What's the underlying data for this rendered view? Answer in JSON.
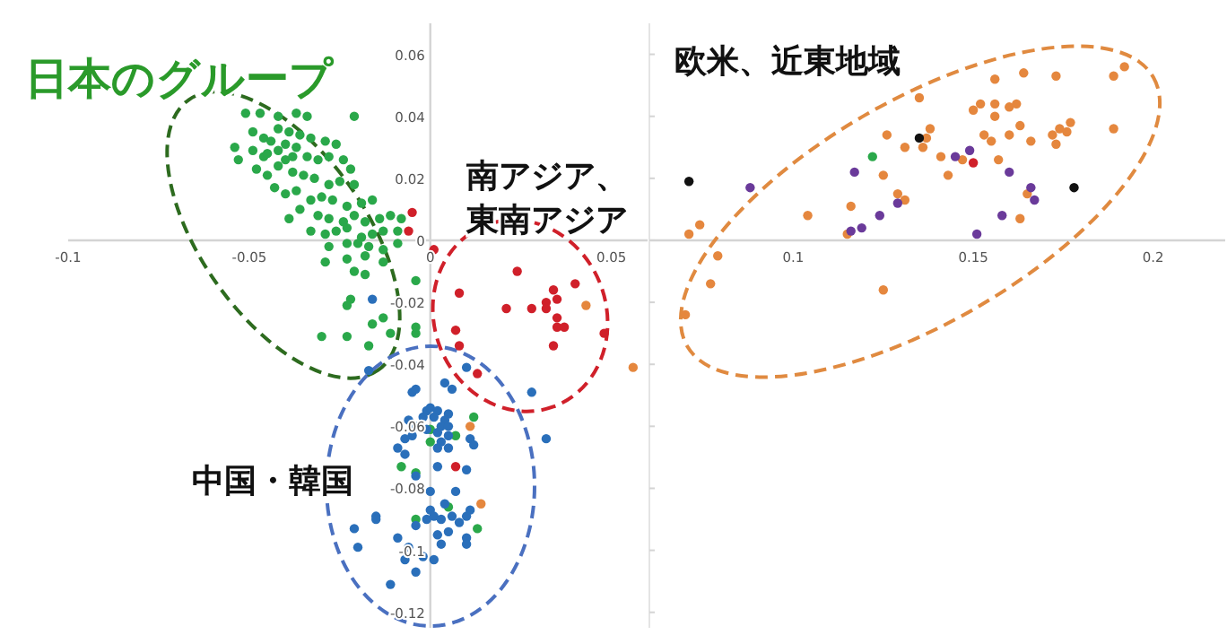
{
  "chart_data": [
    {
      "type": "scatter",
      "xlim": [
        -0.1,
        0.06
      ],
      "ylim": [
        -0.125,
        0.07
      ],
      "xticks": [
        -0.1,
        -0.05,
        0,
        0.05
      ],
      "yticks": [
        0.06,
        0.04,
        0.02,
        0,
        -0.02,
        -0.04,
        -0.06,
        -0.08,
        -0.1,
        -0.12
      ],
      "marker": "circle",
      "grid": false,
      "annotations": [
        "日本のグループ",
        "南アジア、東南アジア",
        "中国・韓国"
      ],
      "series": [
        {
          "color": "#2aa84a",
          "x": [
            -0.051,
            -0.047,
            -0.042,
            -0.037,
            -0.034,
            -0.021,
            -0.054,
            -0.049,
            -0.046,
            -0.042,
            -0.039,
            -0.036,
            -0.033,
            -0.029,
            -0.026,
            -0.053,
            -0.049,
            -0.046,
            -0.042,
            -0.04,
            -0.037,
            -0.034,
            -0.031,
            -0.028,
            -0.024,
            -0.022,
            -0.048,
            -0.045,
            -0.042,
            -0.038,
            -0.035,
            -0.032,
            -0.028,
            -0.025,
            -0.021,
            -0.043,
            -0.04,
            -0.037,
            -0.033,
            -0.03,
            -0.027,
            -0.023,
            -0.019,
            -0.016,
            -0.039,
            -0.036,
            -0.031,
            -0.028,
            -0.024,
            -0.021,
            -0.018,
            -0.014,
            -0.011,
            -0.008,
            -0.033,
            -0.029,
            -0.026,
            -0.023,
            -0.019,
            -0.016,
            -0.013,
            -0.009,
            -0.028,
            -0.023,
            -0.02,
            -0.017,
            -0.013,
            -0.009,
            -0.029,
            -0.023,
            -0.018,
            -0.013,
            -0.021,
            -0.018,
            -0.004,
            -0.022,
            -0.023,
            -0.013,
            -0.016,
            -0.004,
            -0.011,
            -0.023,
            -0.03,
            -0.017,
            -0.004,
            -0.044,
            -0.04,
            -0.045,
            -0.038,
            0.012,
            0.0,
            0.007,
            0.0,
            -0.008,
            -0.004,
            -0.004,
            0.005,
            0.013
          ],
          "values": [
            0.041,
            0.041,
            0.04,
            0.041,
            0.04,
            0.04,
            0.03,
            0.035,
            0.033,
            0.036,
            0.035,
            0.034,
            0.033,
            0.032,
            0.031,
            0.026,
            0.029,
            0.027,
            0.029,
            0.026,
            0.03,
            0.027,
            0.026,
            0.027,
            0.026,
            0.023,
            0.023,
            0.021,
            0.024,
            0.022,
            0.021,
            0.02,
            0.018,
            0.019,
            0.018,
            0.017,
            0.015,
            0.016,
            0.013,
            0.014,
            0.013,
            0.011,
            0.012,
            0.013,
            0.007,
            0.01,
            0.008,
            0.007,
            0.006,
            0.008,
            0.006,
            0.007,
            0.008,
            0.007,
            0.003,
            0.002,
            0.003,
            0.004,
            0.001,
            0.002,
            0.003,
            0.003,
            -0.002,
            -0.001,
            -0.001,
            -0.002,
            -0.003,
            -0.001,
            -0.007,
            -0.006,
            -0.005,
            -0.007,
            -0.01,
            -0.011,
            -0.013,
            -0.019,
            -0.021,
            -0.025,
            -0.027,
            -0.03,
            -0.03,
            -0.031,
            -0.031,
            -0.034,
            -0.028,
            0.032,
            0.031,
            0.028,
            0.027,
            -0.057,
            -0.061,
            -0.063,
            -0.065,
            -0.073,
            -0.075,
            -0.09,
            -0.086,
            -0.093
          ]
        },
        {
          "color": "#d0202a",
          "x": [
            0.001,
            0.024,
            0.008,
            0.021,
            0.028,
            0.032,
            0.034,
            0.035,
            0.032,
            0.04,
            0.035,
            0.035,
            0.037,
            0.034,
            0.048,
            0.007,
            0.008,
            0.013,
            -0.005,
            -0.006,
            0.007
          ],
          "values": [
            -0.003,
            -0.01,
            -0.017,
            -0.022,
            -0.022,
            -0.02,
            -0.016,
            -0.019,
            -0.022,
            -0.014,
            -0.025,
            -0.028,
            -0.028,
            -0.034,
            -0.03,
            -0.029,
            -0.034,
            -0.043,
            0.009,
            0.003,
            -0.073
          ]
        },
        {
          "color": "#2a6fba",
          "x": [
            -0.017,
            0.01,
            -0.005,
            0.004,
            0.006,
            -0.001,
            0.0,
            0.002,
            0.005,
            -0.002,
            0.001,
            0.004,
            -0.006,
            -0.004,
            0.003,
            0.005,
            -0.001,
            0.002,
            0.005,
            -0.005,
            -0.007,
            0.003,
            -0.009,
            0.005,
            -0.007,
            0.002,
            0.011,
            0.012,
            0.01,
            0.002,
            -0.004,
            0.0,
            0.007,
            0.004,
            0.0,
            -0.001,
            0.001,
            0.003,
            0.006,
            0.01,
            0.011,
            0.008,
            -0.004,
            0.005,
            0.002,
            0.01,
            -0.009,
            -0.006,
            0.003,
            0.01,
            -0.002,
            0.001,
            -0.007,
            -0.004,
            -0.011,
            -0.021,
            -0.02,
            -0.015,
            -0.015,
            0.028,
            0.032,
            -0.016,
            -0.004
          ],
          "values": [
            -0.042,
            -0.041,
            -0.049,
            -0.046,
            -0.048,
            -0.055,
            -0.054,
            -0.055,
            -0.056,
            -0.057,
            -0.057,
            -0.058,
            -0.058,
            -0.06,
            -0.06,
            -0.06,
            -0.061,
            -0.062,
            -0.063,
            -0.063,
            -0.064,
            -0.065,
            -0.067,
            -0.067,
            -0.069,
            -0.067,
            -0.064,
            -0.066,
            -0.074,
            -0.073,
            -0.076,
            -0.081,
            -0.081,
            -0.085,
            -0.087,
            -0.09,
            -0.089,
            -0.09,
            -0.089,
            -0.089,
            -0.087,
            -0.091,
            -0.092,
            -0.094,
            -0.095,
            -0.096,
            -0.096,
            -0.099,
            -0.098,
            -0.098,
            -0.102,
            -0.103,
            -0.103,
            -0.107,
            -0.111,
            -0.093,
            -0.099,
            -0.089,
            -0.09,
            -0.049,
            -0.064,
            -0.019,
            -0.048
          ]
        },
        {
          "color": "#e5873e",
          "x": [
            0.043,
            0.056,
            0.011,
            0.014
          ],
          "values": [
            -0.021,
            -0.041,
            -0.06,
            -0.085
          ]
        }
      ]
    },
    {
      "type": "scatter",
      "xlim": [
        0.06,
        0.22
      ],
      "ylim": [
        -0.125,
        0.07
      ],
      "xticks": [
        0.1,
        0.15,
        0.2
      ],
      "yticks": [
        0.06,
        0.04,
        0.02,
        0,
        -0.02,
        -0.04,
        -0.06,
        -0.08,
        -0.1,
        -0.12
      ],
      "tick_labels": "x",
      "marker": "circle",
      "grid": false,
      "annotations": [
        "欧米、近東地域"
      ],
      "series": [
        {
          "color": "#e5873e",
          "x": [
            0.071,
            0.074,
            0.079,
            0.077,
            0.07,
            0.104,
            0.115,
            0.116,
            0.125,
            0.126,
            0.129,
            0.131,
            0.131,
            0.135,
            0.138,
            0.136,
            0.137,
            0.143,
            0.141,
            0.147,
            0.15,
            0.152,
            0.153,
            0.155,
            0.156,
            0.156,
            0.156,
            0.157,
            0.16,
            0.16,
            0.162,
            0.163,
            0.163,
            0.164,
            0.165,
            0.166,
            0.172,
            0.173,
            0.173,
            0.174,
            0.176,
            0.177,
            0.189,
            0.189,
            0.192,
            0.125
          ],
          "values": [
            0.002,
            0.005,
            -0.005,
            -0.014,
            -0.024,
            0.008,
            0.002,
            0.011,
            0.021,
            0.034,
            0.015,
            0.013,
            0.03,
            0.046,
            0.036,
            0.03,
            0.033,
            0.021,
            0.027,
            0.026,
            0.042,
            0.044,
            0.034,
            0.032,
            0.052,
            0.044,
            0.04,
            0.026,
            0.034,
            0.043,
            0.044,
            0.007,
            0.037,
            0.054,
            0.015,
            0.032,
            0.034,
            0.031,
            0.053,
            0.036,
            0.035,
            0.038,
            0.053,
            0.036,
            0.056,
            -0.016
          ]
        },
        {
          "color": "#6a3a9a",
          "x": [
            0.088,
            0.117,
            0.116,
            0.119,
            0.124,
            0.129,
            0.145,
            0.149,
            0.151,
            0.158,
            0.16,
            0.166,
            0.167
          ],
          "values": [
            0.017,
            0.022,
            0.003,
            0.004,
            0.008,
            0.012,
            0.027,
            0.029,
            0.002,
            0.008,
            0.022,
            0.017,
            0.013
          ]
        },
        {
          "color": "#111111",
          "x": [
            0.071,
            0.135,
            0.178
          ],
          "values": [
            0.019,
            0.033,
            0.017
          ]
        },
        {
          "color": "#2aa84a",
          "x": [
            0.122
          ],
          "values": [
            0.027
          ]
        },
        {
          "color": "#d0202a",
          "x": [
            0.15
          ],
          "values": [
            0.025
          ]
        }
      ]
    }
  ]
}
